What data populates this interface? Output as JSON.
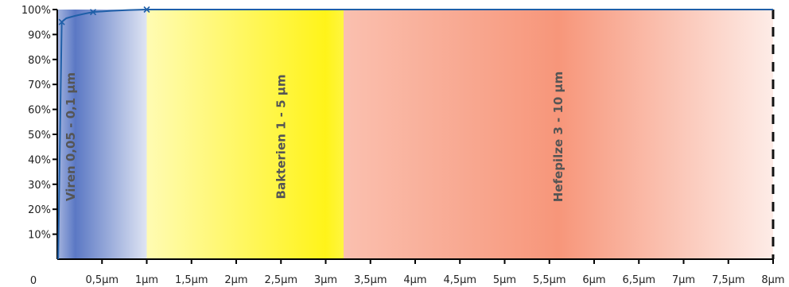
{
  "chart_data": {
    "type": "line",
    "title": "",
    "xlabel": "",
    "ylabel": "",
    "xlim": [
      0,
      8
    ],
    "ylim": [
      0,
      100
    ],
    "origin_label": "0",
    "x_ticks": [
      {
        "value": 0.5,
        "label": "0,5µm"
      },
      {
        "value": 1,
        "label": "1µm"
      },
      {
        "value": 1.5,
        "label": "1,5µm"
      },
      {
        "value": 2,
        "label": "2µm"
      },
      {
        "value": 2.5,
        "label": "2,5µm"
      },
      {
        "value": 3,
        "label": "3µm"
      },
      {
        "value": 3.5,
        "label": "3,5µm"
      },
      {
        "value": 4,
        "label": "4µm"
      },
      {
        "value": 4.5,
        "label": "4,5µm"
      },
      {
        "value": 5,
        "label": "5µm"
      },
      {
        "value": 5.5,
        "label": "5,5µm"
      },
      {
        "value": 6,
        "label": "6µm"
      },
      {
        "value": 6.5,
        "label": "6,5µm"
      },
      {
        "value": 7,
        "label": "7µm"
      },
      {
        "value": 7.5,
        "label": "7,5µm"
      },
      {
        "value": 8,
        "label": "8µm"
      }
    ],
    "y_ticks": [
      {
        "value": 10,
        "label": "10%"
      },
      {
        "value": 20,
        "label": "20%"
      },
      {
        "value": 30,
        "label": "30%"
      },
      {
        "value": 40,
        "label": "40%"
      },
      {
        "value": 50,
        "label": "50%"
      },
      {
        "value": 60,
        "label": "60%"
      },
      {
        "value": 70,
        "label": "70%"
      },
      {
        "value": 80,
        "label": "80%"
      },
      {
        "value": 90,
        "label": "90%"
      },
      {
        "value": 100,
        "label": "100%"
      }
    ],
    "series": [
      {
        "color": "#1f5fa8",
        "x": [
          0.01,
          0.05,
          0.1,
          0.2,
          0.3,
          0.4,
          0.6,
          0.8,
          1.0,
          1.5,
          2,
          3,
          4,
          5,
          6,
          7,
          8
        ],
        "y": [
          0,
          95,
          96.5,
          97.5,
          98.3,
          99,
          99.5,
          99.8,
          100,
          100,
          100,
          100,
          100,
          100,
          100,
          100,
          100
        ],
        "markers": [
          {
            "x": 0.05,
            "y": 95
          },
          {
            "x": 0.4,
            "y": 99
          },
          {
            "x": 1.0,
            "y": 100
          }
        ]
      }
    ],
    "bands": [
      {
        "label": "Viren 0,05 - 0,1 µm",
        "x_start": 0,
        "x_end": 1,
        "color": "#5b78c4",
        "peak_x": 0.2,
        "label_x": 0.15
      },
      {
        "label": "Bakterien 1 - 5 µm",
        "x_start": 1,
        "x_end": 3.2,
        "color": "#fff200",
        "peak_x": 3.0,
        "label_x": 2.5
      },
      {
        "label": "Hefepilze 3 - 10 µm",
        "x_start": 3.2,
        "x_end": 8,
        "color": "#f7967a",
        "peak_x": 5.6,
        "label_x": 5.6
      }
    ],
    "dashed_line_x": 8
  }
}
